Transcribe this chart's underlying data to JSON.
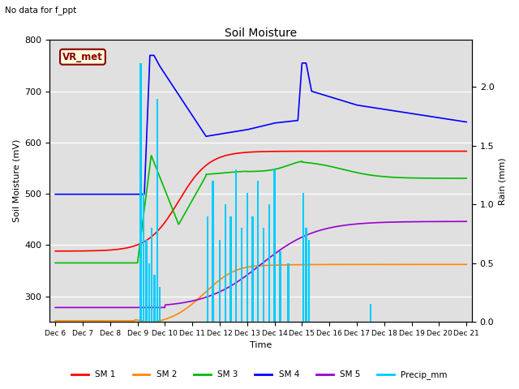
{
  "title": "Soil Moisture",
  "subtitle": "No data for f_ppt",
  "xlabel": "Time",
  "ylabel_left": "Soil Moisture (mV)",
  "ylabel_right": "Rain (mm)",
  "ylim_left": [
    250,
    800
  ],
  "ylim_right": [
    0.0,
    2.4
  ],
  "annotation_box": "VR_met",
  "background_color": "#ffffff",
  "plot_bg_color": "#e0e0e0",
  "line_colors": {
    "SM1": "#ff0000",
    "SM2": "#ff8800",
    "SM3": "#00bb00",
    "SM4": "#0000ff",
    "SM5": "#9900cc",
    "Precip": "#00ccff"
  },
  "legend_labels": [
    "SM 1",
    "SM 2",
    "SM 3",
    "SM 4",
    "SM 5",
    "Precip_mm"
  ],
  "x_tick_labels": [
    "Dec 6",
    "Dec 7",
    "Dec 8",
    "Dec 9",
    "Dec 10",
    "Dec 11",
    "Dec 12",
    "Dec 13",
    "Dec 14",
    "Dec 15",
    "Dec 16",
    "Dec 17",
    "Dec 18",
    "Dec 19",
    "Dec 20",
    "Dec 21"
  ]
}
